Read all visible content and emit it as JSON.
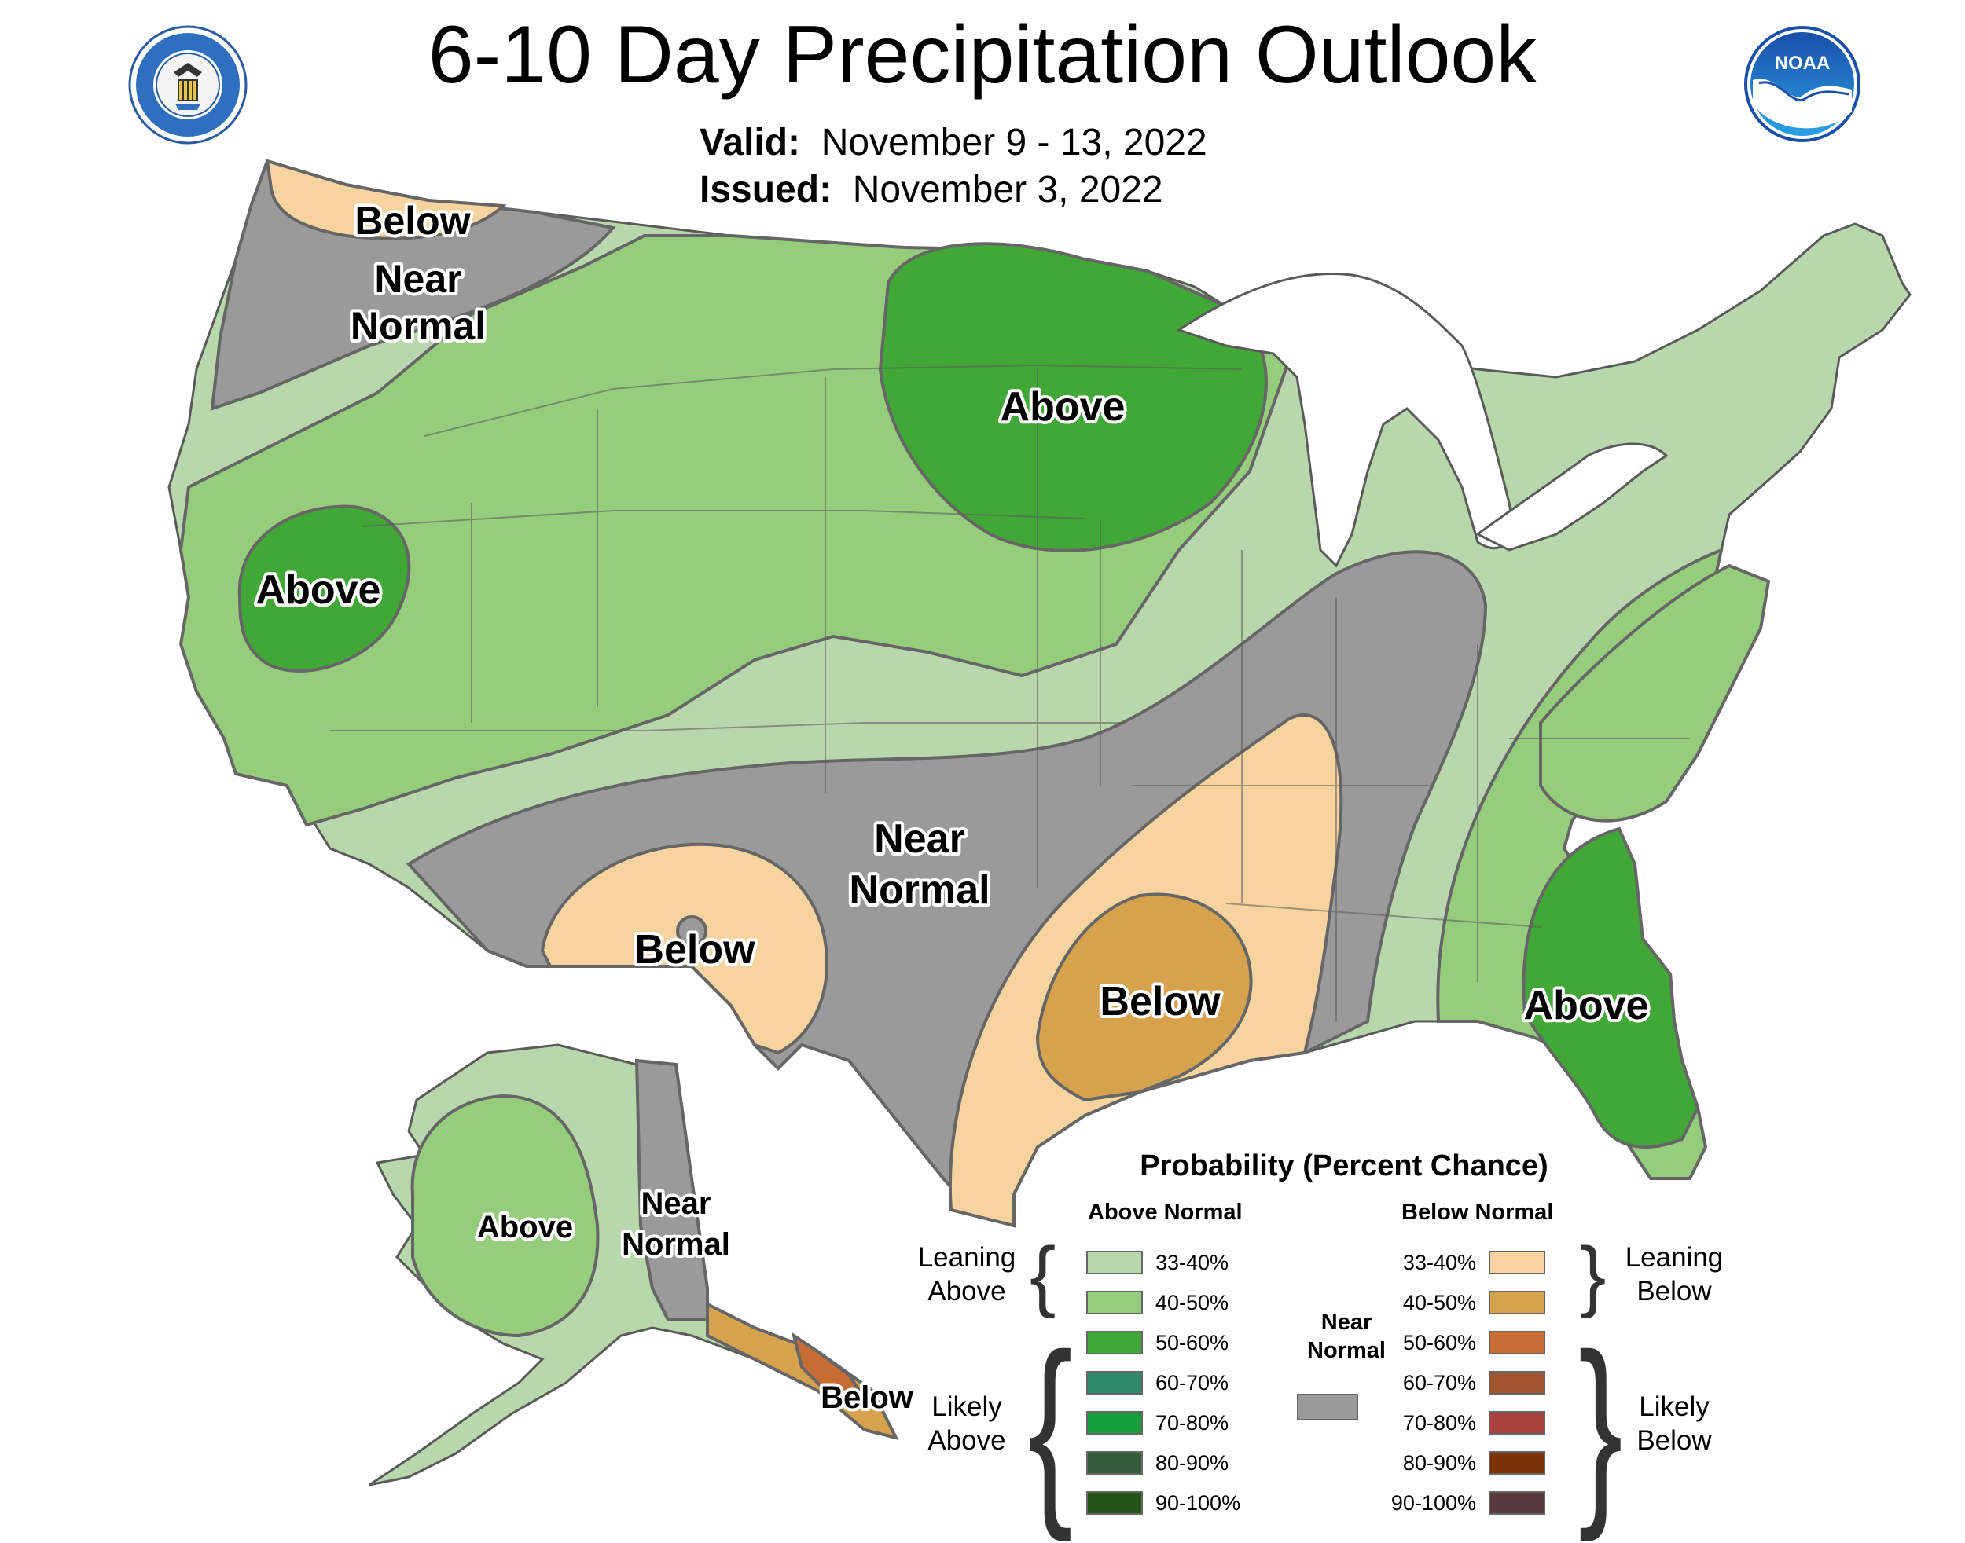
{
  "header": {
    "title": "6-10 Day Precipitation Outlook",
    "valid_label": "Valid:",
    "valid_value": "November 9 - 13, 2022",
    "issued_label": "Issued:",
    "issued_value": "November 3, 2022"
  },
  "logos": {
    "left": "department-of-commerce-seal",
    "right": "noaa-logo"
  },
  "map": {
    "regions": [
      {
        "name": "pacific-northwest-below",
        "label": "Below",
        "category": "below",
        "probability": "33-40%"
      },
      {
        "name": "northwest-near-normal",
        "label": "Near Normal",
        "category": "near-normal"
      },
      {
        "name": "california-above",
        "label": "Above",
        "category": "above",
        "probability": "50-60%"
      },
      {
        "name": "upper-midwest-above",
        "label": "Above",
        "category": "above",
        "probability": "50-60%"
      },
      {
        "name": "southern-plains-near-normal",
        "label": "Near Normal",
        "category": "near-normal"
      },
      {
        "name": "new-mexico-texas-below",
        "label": "Below",
        "category": "below",
        "probability": "33-40%"
      },
      {
        "name": "lower-mississippi-below",
        "label": "Below",
        "category": "below",
        "probability": "40-50%"
      },
      {
        "name": "southeast-above",
        "label": "Above",
        "category": "above",
        "probability": "50-60%"
      },
      {
        "name": "alaska-above",
        "label": "Above",
        "category": "above",
        "probability": "40-50%"
      },
      {
        "name": "alaska-east-near-normal",
        "label": "Near Normal",
        "category": "near-normal"
      },
      {
        "name": "alaska-panhandle-below",
        "label": "Below",
        "category": "below",
        "probability": "40-50%"
      }
    ]
  },
  "legend": {
    "title": "Probability (Percent Chance)",
    "above_header": "Above Normal",
    "below_header": "Below Normal",
    "near_normal_label": "Near Normal",
    "near_normal_color": "#9a9a9a",
    "leaning_above": "Leaning Above",
    "likely_above": "Likely Above",
    "leaning_below": "Leaning Below",
    "likely_below": "Likely Below",
    "above": [
      {
        "label": "33-40%",
        "color": "#b9d7ac"
      },
      {
        "label": "40-50%",
        "color": "#95cd7c"
      },
      {
        "label": "50-60%",
        "color": "#41a838"
      },
      {
        "label": "60-70%",
        "color": "#2f8a6c"
      },
      {
        "label": "70-80%",
        "color": "#13a03c"
      },
      {
        "label": "80-90%",
        "color": "#345b3a"
      },
      {
        "label": "90-100%",
        "color": "#275418"
      }
    ],
    "below": [
      {
        "label": "33-40%",
        "color": "#f7d49f"
      },
      {
        "label": "40-50%",
        "color": "#d7a24d"
      },
      {
        "label": "50-60%",
        "color": "#c76c32"
      },
      {
        "label": "60-70%",
        "color": "#a35530"
      },
      {
        "label": "70-80%",
        "color": "#a8423a"
      },
      {
        "label": "80-90%",
        "color": "#7c3307"
      },
      {
        "label": "90-100%",
        "color": "#58393d"
      }
    ]
  }
}
